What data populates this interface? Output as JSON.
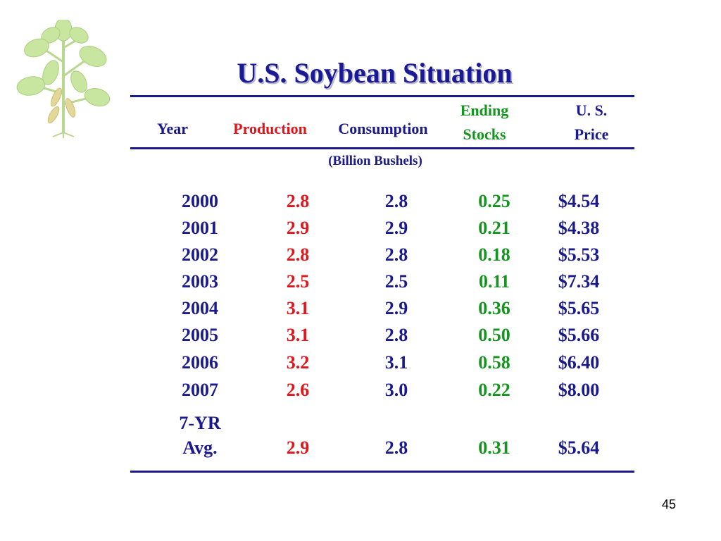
{
  "slide": {
    "title": "U.S. Soybean Situation",
    "page_number": "45",
    "units_note": "(Billion Bushels)"
  },
  "colors": {
    "title": "#1a1a96",
    "production": "#e0161c",
    "consumption": "#1a1a8c",
    "ending_stocks": "#15951f",
    "price": "#1a1a8c",
    "plant": "#c8e6a0"
  },
  "icons": [
    "soybean-plant-icon"
  ],
  "table": {
    "headers": {
      "year": "Year",
      "production": "Production",
      "consumption": "Consumption",
      "ending_stocks_line1": "Ending",
      "ending_stocks_line2": "Stocks",
      "price_line1": "U. S.",
      "price_line2": "Price"
    },
    "rows": [
      {
        "year": "2000",
        "production": "2.8",
        "consumption": "2.8",
        "ending_stocks": "0.25",
        "price": "$4.54"
      },
      {
        "year": "2001",
        "production": "2.9",
        "consumption": "2.9",
        "ending_stocks": "0.21",
        "price": "$4.38"
      },
      {
        "year": "2002",
        "production": "2.8",
        "consumption": "2.8",
        "ending_stocks": "0.18",
        "price": "$5.53"
      },
      {
        "year": "2003",
        "production": "2.5",
        "consumption": "2.5",
        "ending_stocks": "0.11",
        "price": "$7.34"
      },
      {
        "year": "2004",
        "production": "3.1",
        "consumption": "2.9",
        "ending_stocks": "0.36",
        "price": "$5.65"
      },
      {
        "year": "2005",
        "production": "3.1",
        "consumption": "2.8",
        "ending_stocks": "0.50",
        "price": "$5.66"
      },
      {
        "year": "2006",
        "production": "3.2",
        "consumption": "3.1",
        "ending_stocks": "0.58",
        "price": "$6.40"
      },
      {
        "year": "2007",
        "production": "2.6",
        "consumption": "3.0",
        "ending_stocks": "0.22",
        "price": "$8.00"
      }
    ],
    "average": {
      "label_line1": "7-YR",
      "label_line2": "Avg.",
      "production": "2.9",
      "consumption": "2.8",
      "ending_stocks": "0.31",
      "price": "$5.64"
    }
  }
}
